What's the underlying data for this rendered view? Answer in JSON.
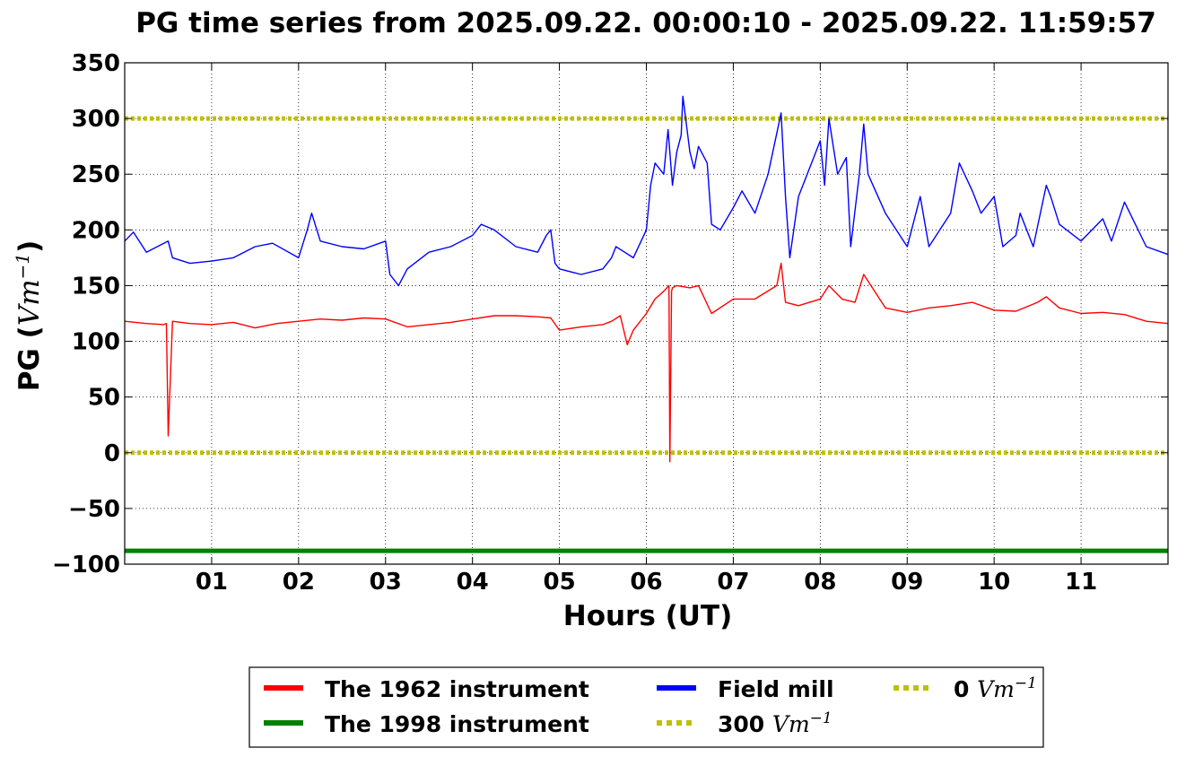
{
  "chart_data": {
    "type": "line",
    "title": "PG time series from 2025.09.22. 00:00:10 - 2025.09.22. 11:59:57",
    "xlabel": "Hours (UT)",
    "ylabel_prefix": "PG (",
    "ylabel_unit": "Vm",
    "ylabel_exp": "−1",
    "ylabel_suffix": ")",
    "xlim": [
      0,
      12
    ],
    "ylim": [
      -100,
      350
    ],
    "x_ticks": [
      1,
      2,
      3,
      4,
      5,
      6,
      7,
      8,
      9,
      10,
      11
    ],
    "x_tick_labels": [
      "01",
      "02",
      "03",
      "04",
      "05",
      "06",
      "07",
      "08",
      "09",
      "10",
      "11"
    ],
    "y_ticks": [
      -100,
      -50,
      0,
      50,
      100,
      150,
      200,
      250,
      300,
      350
    ],
    "y_tick_labels": [
      "−100",
      "−50",
      "0",
      "50",
      "100",
      "150",
      "200",
      "250",
      "300",
      "350"
    ],
    "grid": true,
    "legend_placement": "below",
    "colors": {
      "red": "#ff0000",
      "green": "#008000",
      "blue": "#0000ff",
      "yellow": "#bfbf00"
    },
    "series": [
      {
        "name": "The 1962 instrument",
        "color": "#ff0000",
        "x": [
          0.0,
          0.25,
          0.45,
          0.48,
          0.5,
          0.55,
          0.75,
          1.0,
          1.25,
          1.5,
          1.75,
          2.0,
          2.25,
          2.5,
          2.75,
          3.0,
          3.25,
          3.5,
          3.75,
          4.0,
          4.25,
          4.5,
          4.75,
          4.9,
          5.0,
          5.25,
          5.5,
          5.6,
          5.7,
          5.78,
          5.85,
          6.0,
          6.1,
          6.2,
          6.26,
          6.27,
          6.29,
          6.3,
          6.35,
          6.5,
          6.6,
          6.75,
          7.0,
          7.25,
          7.5,
          7.55,
          7.6,
          7.75,
          8.0,
          8.1,
          8.25,
          8.4,
          8.5,
          8.75,
          9.0,
          9.25,
          9.5,
          9.75,
          10.0,
          10.25,
          10.5,
          10.6,
          10.75,
          11.0,
          11.25,
          11.5,
          11.75,
          12.0
        ],
        "y": [
          118,
          116,
          115,
          116,
          15,
          118,
          116,
          115,
          117,
          112,
          116,
          118,
          120,
          119,
          121,
          120,
          113,
          115,
          117,
          120,
          123,
          123,
          122,
          121,
          110,
          113,
          115,
          118,
          123,
          97,
          110,
          125,
          138,
          145,
          150,
          -8,
          145,
          148,
          150,
          148,
          150,
          125,
          138,
          138,
          150,
          170,
          135,
          132,
          138,
          150,
          138,
          135,
          160,
          130,
          126,
          130,
          132,
          135,
          128,
          127,
          135,
          140,
          130,
          125,
          126,
          124,
          118,
          116
        ]
      },
      {
        "name": "The 1998 instrument",
        "color": "#008000",
        "x": [
          0,
          12
        ],
        "y": [
          -88,
          -88
        ]
      },
      {
        "name": "Field mill",
        "color": "#0000ff",
        "x": [
          0.0,
          0.1,
          0.25,
          0.5,
          0.55,
          0.75,
          1.0,
          1.25,
          1.5,
          1.7,
          2.0,
          2.1,
          2.15,
          2.25,
          2.5,
          2.75,
          3.0,
          3.05,
          3.15,
          3.25,
          3.5,
          3.75,
          4.0,
          4.1,
          4.25,
          4.5,
          4.75,
          4.85,
          4.9,
          4.95,
          5.0,
          5.25,
          5.5,
          5.6,
          5.65,
          5.75,
          5.85,
          6.0,
          6.05,
          6.1,
          6.2,
          6.25,
          6.3,
          6.35,
          6.4,
          6.42,
          6.5,
          6.55,
          6.6,
          6.7,
          6.75,
          6.85,
          7.0,
          7.1,
          7.25,
          7.4,
          7.55,
          7.6,
          7.65,
          7.75,
          7.85,
          8.0,
          8.05,
          8.1,
          8.2,
          8.3,
          8.35,
          8.45,
          8.5,
          8.55,
          8.75,
          9.0,
          9.15,
          9.25,
          9.5,
          9.6,
          9.75,
          9.85,
          10.0,
          10.1,
          10.25,
          10.3,
          10.45,
          10.6,
          10.65,
          10.75,
          11.0,
          11.25,
          11.35,
          11.5,
          11.75,
          12.0
        ],
        "y": [
          190,
          198,
          180,
          190,
          175,
          170,
          172,
          175,
          185,
          188,
          175,
          200,
          215,
          190,
          185,
          183,
          190,
          160,
          150,
          165,
          180,
          185,
          195,
          205,
          200,
          185,
          180,
          195,
          200,
          170,
          165,
          160,
          165,
          175,
          185,
          180,
          175,
          200,
          240,
          260,
          250,
          290,
          240,
          270,
          285,
          320,
          270,
          255,
          275,
          260,
          205,
          200,
          220,
          235,
          215,
          250,
          305,
          230,
          175,
          230,
          250,
          280,
          240,
          300,
          250,
          265,
          185,
          250,
          295,
          250,
          215,
          185,
          230,
          185,
          215,
          260,
          235,
          215,
          230,
          185,
          195,
          215,
          185,
          240,
          230,
          205,
          190,
          210,
          190,
          225,
          185,
          178
        ]
      },
      {
        "name": "300 Vm⁻¹",
        "color": "#bfbf00",
        "x": [
          0,
          12
        ],
        "y": [
          300,
          300
        ]
      },
      {
        "name": "0 Vm⁻¹",
        "color": "#bfbf00",
        "x": [
          0,
          12
        ],
        "y": [
          0,
          0
        ]
      }
    ],
    "legend": [
      {
        "label": "The 1962 instrument",
        "color": "#ff0000",
        "style": "solid"
      },
      {
        "label": "The 1998 instrument",
        "color": "#008000",
        "style": "solid"
      },
      {
        "label": "Field mill",
        "color": "#0000ff",
        "style": "solid"
      },
      {
        "prefix": "300 ",
        "unit": "Vm",
        "exp": "−1",
        "color": "#bfbf00",
        "style": "dotted"
      },
      {
        "prefix": "0 ",
        "unit": "Vm",
        "exp": "−1",
        "color": "#bfbf00",
        "style": "dotted"
      }
    ]
  }
}
